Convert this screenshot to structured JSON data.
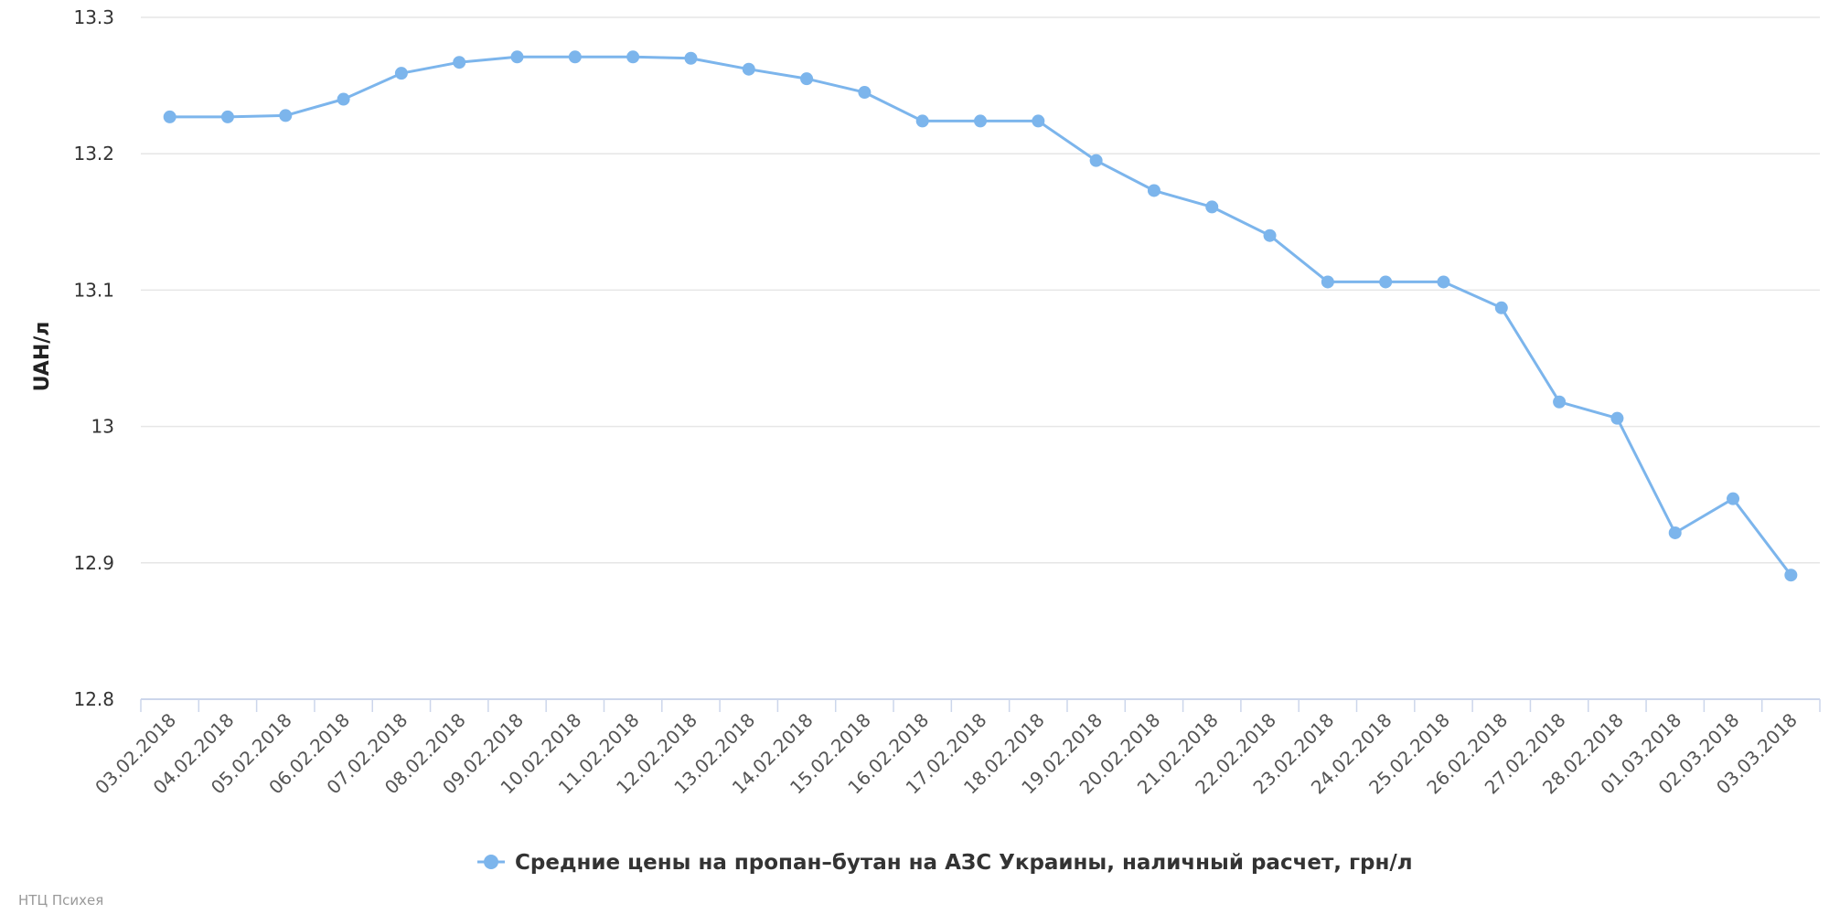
{
  "chart_data": {
    "type": "line",
    "ylabel": "UAH/л",
    "ylim": [
      12.8,
      13.3
    ],
    "yticks": [
      "13.3",
      "13.2",
      "13.1",
      "13",
      "12.9",
      "12.8"
    ],
    "ytick_values": [
      13.3,
      13.2,
      13.1,
      13.0,
      12.9,
      12.8
    ],
    "grid": true,
    "legend_position": "bottom-center",
    "categories": [
      "03.02.2018",
      "04.02.2018",
      "05.02.2018",
      "06.02.2018",
      "07.02.2018",
      "08.02.2018",
      "09.02.2018",
      "10.02.2018",
      "11.02.2018",
      "12.02.2018",
      "13.02.2018",
      "14.02.2018",
      "15.02.2018",
      "16.02.2018",
      "17.02.2018",
      "18.02.2018",
      "19.02.2018",
      "20.02.2018",
      "21.02.2018",
      "22.02.2018",
      "23.02.2018",
      "24.02.2018",
      "25.02.2018",
      "26.02.2018",
      "27.02.2018",
      "28.02.2018",
      "01.03.2018",
      "02.03.2018",
      "03.03.2018"
    ],
    "series": [
      {
        "name": "Средние цены на пропан–бутан на АЗС Украины, наличный расчет, грн/л",
        "color": "#7cb5ec",
        "values": [
          13.227,
          13.227,
          13.228,
          13.24,
          13.259,
          13.267,
          13.271,
          13.271,
          13.271,
          13.27,
          13.262,
          13.255,
          13.245,
          13.224,
          13.224,
          13.224,
          13.195,
          13.173,
          13.161,
          13.14,
          13.106,
          13.106,
          13.106,
          13.087,
          13.018,
          13.006,
          12.922,
          12.947,
          12.891
        ]
      }
    ]
  },
  "credits": "НТЦ Психея"
}
